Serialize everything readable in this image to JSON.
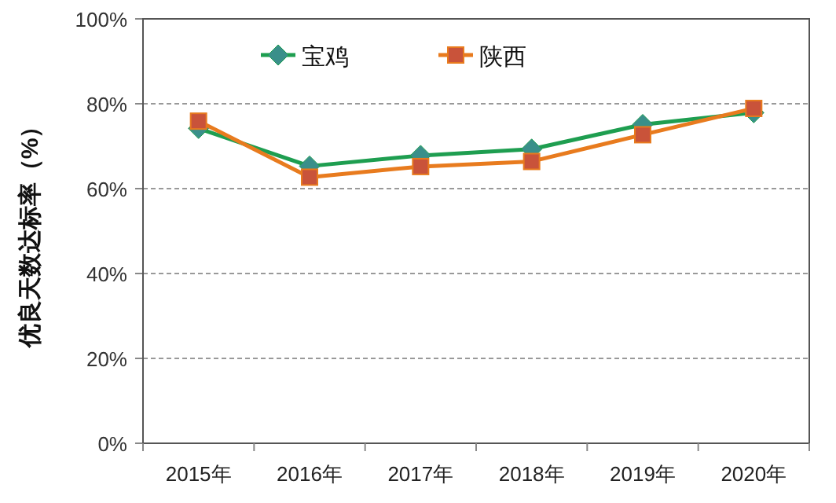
{
  "chart_data": {
    "type": "line",
    "ylabel": "优良天数达标率（%）",
    "categories": [
      "2015年",
      "2016年",
      "2017年",
      "2018年",
      "2019年",
      "2020年"
    ],
    "series": [
      {
        "name": "宝鸡",
        "color": "#1e9e50",
        "marker": "diamond",
        "values": [
          74.2,
          65.3,
          67.8,
          69.3,
          75.1,
          77.9
        ]
      },
      {
        "name": "陕西",
        "color": "#e87b1e",
        "marker": "square",
        "values": [
          75.9,
          62.7,
          65.2,
          66.4,
          72.7,
          78.9
        ]
      }
    ],
    "ylim": [
      0,
      100
    ],
    "yticks": [
      {
        "value": 0,
        "label": "0%"
      },
      {
        "value": 20,
        "label": "20%"
      },
      {
        "value": 40,
        "label": "40%"
      },
      {
        "value": 60,
        "label": "60%"
      },
      {
        "value": 80,
        "label": "80%"
      },
      {
        "value": 100,
        "label": "100%"
      }
    ],
    "grid": "y",
    "legend": "top left"
  }
}
